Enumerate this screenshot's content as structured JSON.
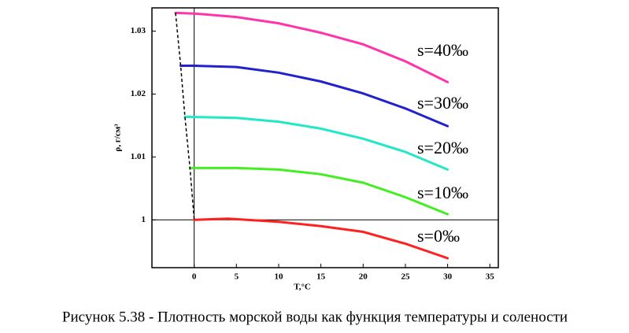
{
  "chart_data": {
    "type": "line",
    "caption": "Рисунок 5.38 - Плотность морской воды как функция температуры и солености",
    "y_label": "ρ, г/см³",
    "x_label": "T,°C",
    "xlim": [
      -5,
      36
    ],
    "ylim": [
      0.9924,
      1.0337
    ],
    "xticks": [
      0,
      5,
      10,
      15,
      20,
      25,
      30,
      35
    ],
    "yticks": [
      1,
      1.01,
      1.02,
      1.03
    ],
    "reference_lines": {
      "x": 0,
      "y": 1
    },
    "series": [
      {
        "name": "s=0‰",
        "color": "#ff2020",
        "x": [
          0,
          4,
          10,
          15,
          20,
          25,
          30
        ],
        "values": [
          1.0,
          1.0002,
          0.9997,
          0.999,
          0.9981,
          0.9962,
          0.9939
        ]
      },
      {
        "name": "s=10‰",
        "color": "#44ee22",
        "x": [
          -0.5,
          5,
          10,
          15,
          20,
          25,
          30
        ],
        "values": [
          1.00825,
          1.00825,
          1.008,
          1.00725,
          1.0059,
          1.0036,
          1.0009
        ]
      },
      {
        "name": "s=20‰",
        "color": "#22e8c8",
        "x": [
          -1.1,
          5,
          10,
          15,
          20,
          25,
          30
        ],
        "values": [
          1.01638,
          1.0162,
          1.0156,
          1.0145,
          1.0129,
          1.0108,
          1.008
        ]
      },
      {
        "name": "s=30‰",
        "color": "#2222cc",
        "x": [
          -1.6,
          0,
          5,
          10,
          15,
          20,
          25,
          30
        ],
        "values": [
          1.0245,
          1.0245,
          1.0243,
          1.0234,
          1.022,
          1.0201,
          1.0177,
          1.0149
        ]
      },
      {
        "name": "s=40‰",
        "color": "#ff33aa",
        "x": [
          -2.2,
          0,
          5,
          10,
          15,
          20,
          25,
          30
        ],
        "values": [
          1.0329,
          1.0328,
          1.03225,
          1.03125,
          1.02975,
          1.0279,
          1.0252,
          1.0219
        ]
      }
    ],
    "dashed_line": {
      "color": "#000000",
      "x": [
        -2.2,
        -1.6,
        -1.1,
        -0.5,
        0
      ],
      "values": [
        1.0329,
        1.0245,
        1.01638,
        1.00825,
        1.0
      ]
    }
  }
}
